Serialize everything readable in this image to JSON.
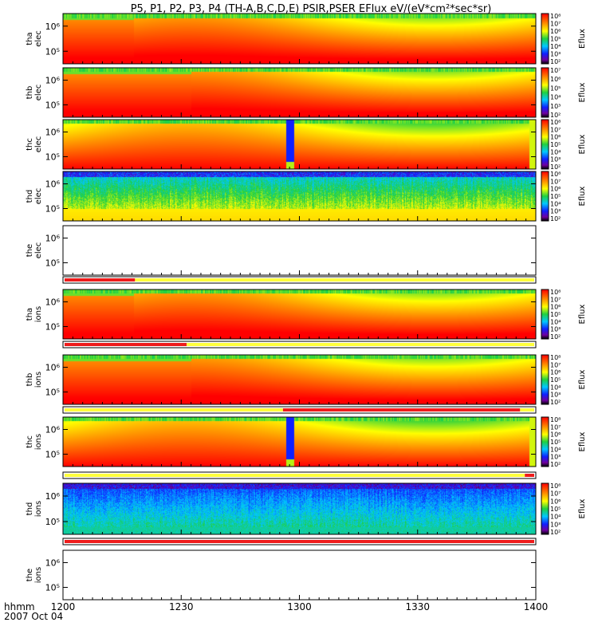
{
  "title": "P5, P1, P2, P3, P4 (TH-A,B,C,D,E) PSIR,PSER EFlux eV/(eV*cm²*sec*sr)",
  "time_axis": {
    "label": "hhmm",
    "date": "2007 Oct 04",
    "ticks": [
      "1200",
      "1230",
      "1300",
      "1330",
      "1400"
    ]
  },
  "colorbar": {
    "label": "Eflux",
    "ticks_a": [
      "10⁸",
      "10⁷",
      "10⁶",
      "10⁵",
      "10⁴",
      "10³",
      "10²"
    ],
    "ticks_b": [
      "10⁷",
      "10⁶",
      "10⁵",
      "10⁴",
      "10³",
      "10²"
    ]
  },
  "colors": {
    "red": "#ee1c1c",
    "yellow": "#ffff3c",
    "black": "#000000"
  },
  "chart_data": {
    "type": "heatmap",
    "x_range": [
      "1200",
      "1400"
    ],
    "y_scale": "log",
    "panels": [
      {
        "probe": "tha",
        "species": "elec",
        "label_top": "tha",
        "label_bottom": "elec",
        "yticks": [
          "10⁶",
          "10⁵"
        ],
        "colorbar_ticks": "a",
        "mode": "spec",
        "seed": 1,
        "break_frac": 0.15,
        "event": null
      },
      {
        "probe": "thb",
        "species": "elec",
        "label_top": "thb",
        "label_bottom": "elec",
        "yticks": [
          "10⁶",
          "10⁵"
        ],
        "colorbar_ticks": "b",
        "mode": "spec",
        "seed": 2,
        "break_frac": 0.27,
        "event": null
      },
      {
        "probe": "thc",
        "species": "elec",
        "label_top": "thc",
        "label_bottom": "elec",
        "yticks": [
          "10⁶",
          "10⁵"
        ],
        "colorbar_ticks": "a",
        "mode": "spec",
        "seed": 3,
        "break_frac": null,
        "event": 0.48
      },
      {
        "probe": "thd",
        "species": "elec",
        "label_top": "thd",
        "label_bottom": "elec",
        "yticks": [
          "10⁶",
          "10⁵"
        ],
        "colorbar_ticks": "a",
        "mode": "noisy",
        "seed": 4,
        "break_frac": null,
        "event": null
      },
      {
        "probe": "the",
        "species": "elec",
        "label_top": "the",
        "label_bottom": "elec",
        "yticks": [
          "10⁶",
          "10⁵"
        ],
        "colorbar_ticks": null,
        "mode": "empty",
        "seed": 5,
        "break_frac": null,
        "event": null
      },
      {
        "probe": "tha",
        "species": "ions",
        "label_top": "tha",
        "label_bottom": "ions",
        "yticks": [
          "10⁶",
          "10⁵"
        ],
        "colorbar_ticks": "a",
        "mode": "spec",
        "seed": 6,
        "break_frac": 0.15,
        "event": null
      },
      {
        "probe": "thb",
        "species": "ions",
        "label_top": "thb",
        "label_bottom": "ions",
        "yticks": [
          "10⁶",
          "10⁵"
        ],
        "colorbar_ticks": "a",
        "mode": "spec",
        "seed": 7,
        "break_frac": 0.27,
        "event": null
      },
      {
        "probe": "thc",
        "species": "ions",
        "label_top": "thc",
        "label_bottom": "ions",
        "yticks": [
          "10⁶",
          "10⁵"
        ],
        "colorbar_ticks": "a",
        "mode": "spec",
        "seed": 8,
        "break_frac": null,
        "event": 0.48
      },
      {
        "probe": "thd",
        "species": "ions",
        "label_top": "thd",
        "label_bottom": "ions",
        "yticks": [
          "10⁶",
          "10⁵"
        ],
        "colorbar_ticks": "a",
        "mode": "noisyblue",
        "seed": 9,
        "break_frac": null,
        "event": null
      },
      {
        "probe": "the",
        "species": "ions",
        "label_top": "the",
        "label_bottom": "ions",
        "yticks": [
          "10⁶",
          "10⁵"
        ],
        "colorbar_ticks": null,
        "mode": "empty",
        "seed": 10,
        "break_frac": null,
        "event": null
      }
    ],
    "mode_bars": [
      {
        "after": "the elec",
        "segments": [
          {
            "from": 0,
            "to": 0.15,
            "color": "red"
          },
          {
            "from": 0.15,
            "to": 1,
            "color": "yellow"
          }
        ]
      },
      {
        "after": "tha ions",
        "segments": [
          {
            "from": 0,
            "to": 0.26,
            "color": "red"
          },
          {
            "from": 0.26,
            "to": 1,
            "color": "yellow"
          }
        ]
      },
      {
        "after": "thb ions",
        "segments": [
          {
            "from": 0,
            "to": 0.465,
            "color": "yellow"
          },
          {
            "from": 0.465,
            "to": 0.97,
            "color": "red"
          },
          {
            "from": 0.97,
            "to": 1,
            "color": "yellow"
          }
        ]
      },
      {
        "after": "thc ions",
        "segments": [
          {
            "from": 0,
            "to": 0.98,
            "color": "yellow"
          },
          {
            "from": 0.98,
            "to": 1,
            "color": "red"
          }
        ]
      },
      {
        "after": "thd ions",
        "segments": [
          {
            "from": 0,
            "to": 1,
            "color": "red"
          }
        ]
      }
    ]
  }
}
